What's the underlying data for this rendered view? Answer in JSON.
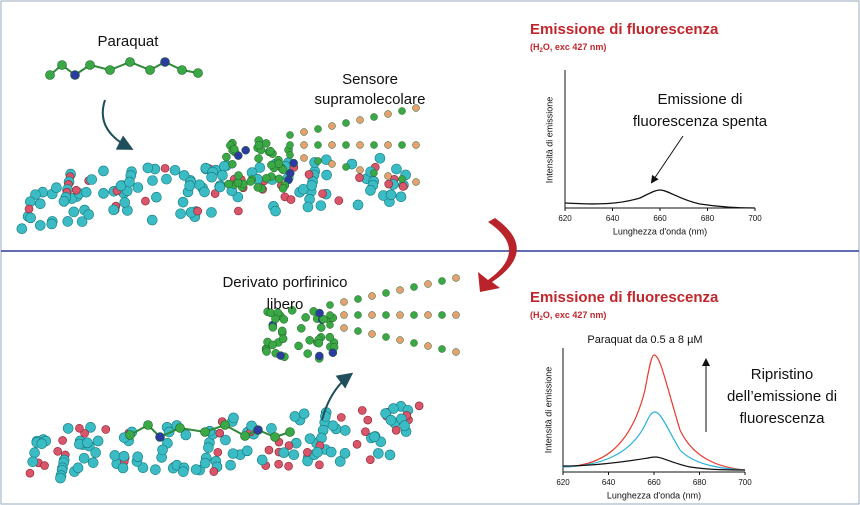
{
  "top": {
    "molecule_label": "Paraquat",
    "sensor_label": [
      "Sensore",
      "supramolecolare"
    ],
    "chart": {
      "title": "Emissione di fluorescenza",
      "subtitle": [
        "(H",
        "2",
        "O, exc 427 nm)"
      ],
      "y_label": "Intensità di emissione",
      "x_label": "Lunghezza d'onda (nm)",
      "xticks": [
        620,
        640,
        660,
        680,
        700
      ],
      "annotation": [
        "Emissione di",
        "fluorescenza spenta"
      ]
    }
  },
  "bottom": {
    "molecule_label": [
      "Derivato porfirinico",
      "libero"
    ],
    "chart": {
      "title": "Emissione di fluorescenza",
      "subtitle": [
        "(H",
        "2",
        "O, exc 427 nm)"
      ],
      "legend": "Paraquat da 0.5 a 8 µM",
      "y_label": "Intensità di emissione",
      "x_label": "Lunghezza d'onda (nm)",
      "xticks": [
        620,
        640,
        660,
        680,
        700
      ],
      "annotation": [
        "Ripristino",
        "dell’emissione di",
        "fluorescenza"
      ]
    }
  }
}
